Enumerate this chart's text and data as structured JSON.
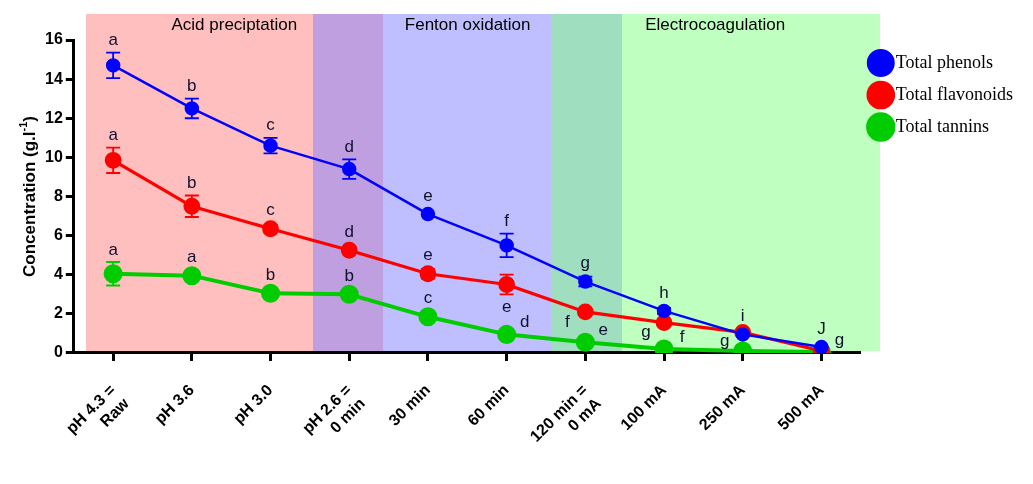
{
  "chart_data": {
    "type": "line",
    "ylabel": "Concentration (g.l$^{-1}$)",
    "categories": [
      "pH 4.3 =\nRaw",
      "pH 3.6",
      "pH 3.0",
      "pH 2.6 =\n0 min",
      "30 min",
      "60 min",
      "120 min =\n0 mA",
      "100 mA",
      "250 mA",
      "500 mA"
    ],
    "ylim": [
      0,
      16
    ],
    "yticks": [
      0,
      2,
      4,
      6,
      8,
      10,
      12,
      14,
      16
    ],
    "marker": "circle",
    "legend": "top right",
    "series": [
      {
        "name": "Total phenols",
        "color": "#0000ff",
        "values": [
          14.7,
          12.5,
          10.6,
          9.4,
          7.1,
          5.5,
          3.65,
          2.15,
          0.95,
          0.3
        ],
        "errors": [
          0.65,
          0.5,
          0.4,
          0.5,
          null,
          0.6,
          0.25,
          0.15,
          null,
          null
        ],
        "value_labels": [
          "a",
          "b",
          "c",
          "d",
          "e",
          "f",
          "g",
          "h",
          "i",
          "J"
        ]
      },
      {
        "name": "Total flavonoids",
        "color": "#ff0000",
        "values": [
          9.85,
          7.5,
          6.35,
          5.25,
          4.05,
          3.5,
          2.1,
          1.55,
          1.05,
          0.1
        ],
        "errors": [
          0.65,
          0.55,
          0.2,
          0.15,
          0.25,
          0.5,
          null,
          null,
          null,
          null
        ],
        "value_labels": [
          "a",
          "b",
          "c",
          "d",
          "e",
          "e",
          "f",
          "g",
          null,
          null
        ]
      },
      {
        "name": "Total tannins",
        "color": "#00cc00",
        "values": [
          4.05,
          3.95,
          3.05,
          3.0,
          1.85,
          0.95,
          0.55,
          0.2,
          0.1,
          0.05
        ],
        "errors": [
          0.6,
          null,
          null,
          0.2,
          null,
          null,
          null,
          null,
          null,
          null
        ],
        "value_labels": [
          "a",
          "a",
          "b",
          "b",
          "c",
          "d",
          "e",
          "f",
          "g",
          "g"
        ]
      }
    ],
    "annotations": [
      "Acid preciptation",
      "Fenton oxidation",
      "Electrocoagulation"
    ]
  }
}
